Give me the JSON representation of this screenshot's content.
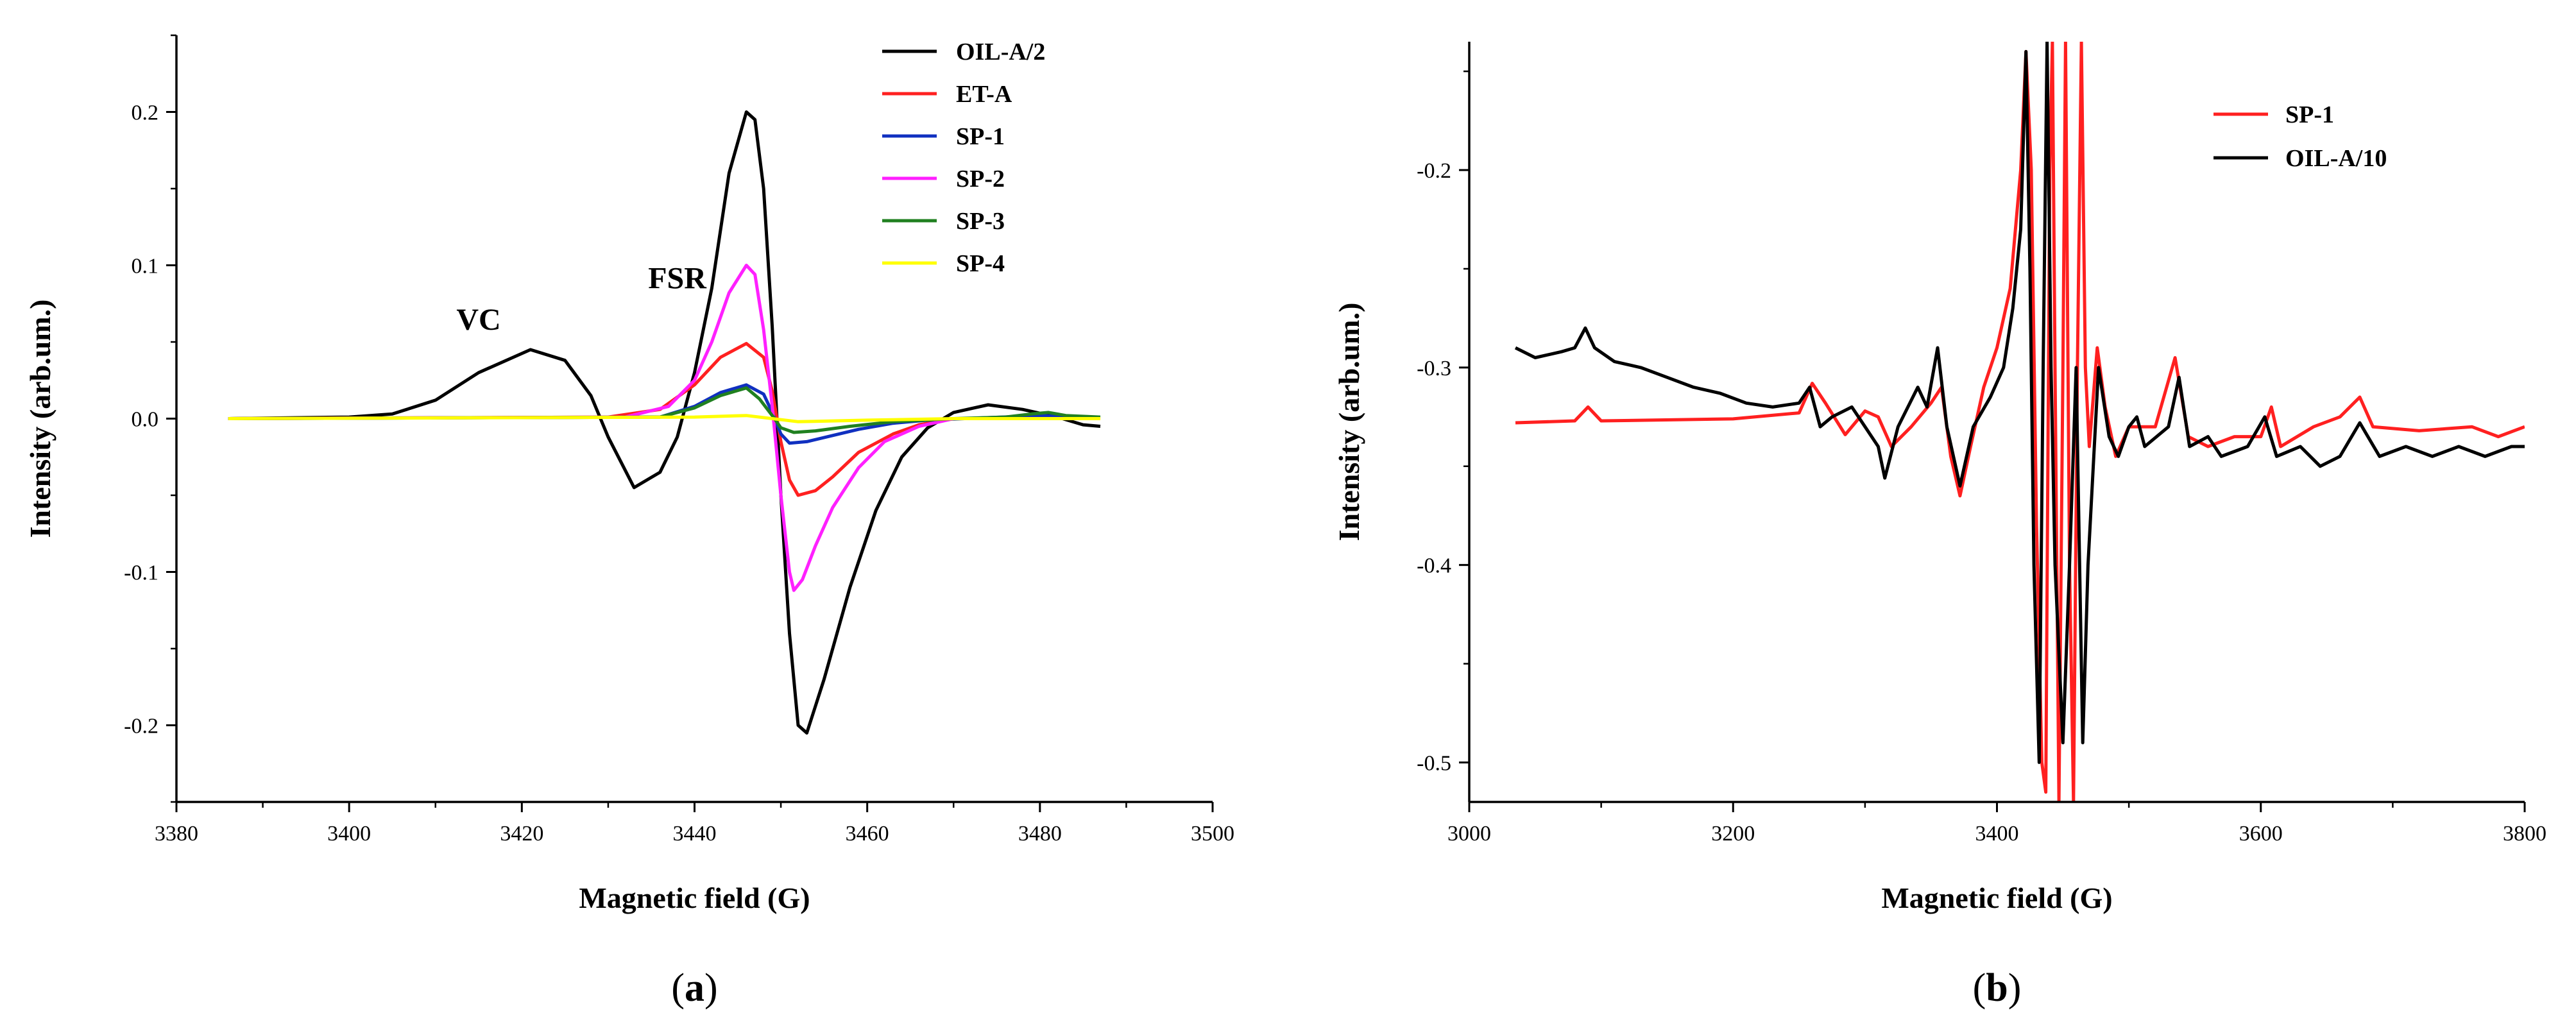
{
  "chart_data": [
    {
      "type": "line",
      "panel_label": "(a)",
      "panel_letter": "a",
      "xlabel": "Magnetic field (G)",
      "ylabel": "Intensity (arb.um.)",
      "xlim": [
        3380,
        3500
      ],
      "ylim": [
        -0.25,
        0.25
      ],
      "xticks": [
        3380,
        3400,
        3420,
        3440,
        3460,
        3480,
        3500
      ],
      "yticks": [
        -0.2,
        -0.1,
        0.0,
        0.1,
        0.2
      ],
      "ytick_labels": [
        "-0.2",
        "-0.1",
        "0.0",
        "0.1",
        "0.2"
      ],
      "legend_position": "top-right",
      "annotations": [
        {
          "text": "VC",
          "x": 3415,
          "y": 0.058
        },
        {
          "text": "FSR",
          "x": 3438,
          "y": 0.085
        }
      ],
      "series": [
        {
          "name": "OIL-A/2",
          "color": "#000000",
          "points": [
            [
              3386,
              0
            ],
            [
              3400,
              0.001
            ],
            [
              3405,
              0.003
            ],
            [
              3410,
              0.012
            ],
            [
              3415,
              0.03
            ],
            [
              3421,
              0.045
            ],
            [
              3425,
              0.038
            ],
            [
              3428,
              0.015
            ],
            [
              3430,
              -0.012
            ],
            [
              3433,
              -0.045
            ],
            [
              3436,
              -0.035
            ],
            [
              3438,
              -0.012
            ],
            [
              3440,
              0.03
            ],
            [
              3442,
              0.085
            ],
            [
              3444,
              0.16
            ],
            [
              3446,
              0.2
            ],
            [
              3447,
              0.195
            ],
            [
              3448,
              0.15
            ],
            [
              3449,
              0.06
            ],
            [
              3450,
              -0.05
            ],
            [
              3451,
              -0.14
            ],
            [
              3452,
              -0.2
            ],
            [
              3453,
              -0.205
            ],
            [
              3455,
              -0.17
            ],
            [
              3458,
              -0.11
            ],
            [
              3461,
              -0.06
            ],
            [
              3464,
              -0.025
            ],
            [
              3467,
              -0.006
            ],
            [
              3470,
              0.004
            ],
            [
              3474,
              0.009
            ],
            [
              3478,
              0.006
            ],
            [
              3482,
              0.001
            ],
            [
              3485,
              -0.004
            ],
            [
              3487,
              -0.005
            ]
          ]
        },
        {
          "name": "ET-A",
          "color": "#ff2020",
          "points": [
            [
              3386,
              0
            ],
            [
              3430,
              0.001
            ],
            [
              3436,
              0.006
            ],
            [
              3440,
              0.022
            ],
            [
              3443,
              0.04
            ],
            [
              3446,
              0.049
            ],
            [
              3448,
              0.04
            ],
            [
              3449,
              0.018
            ],
            [
              3450,
              -0.015
            ],
            [
              3451,
              -0.04
            ],
            [
              3452,
              -0.05
            ],
            [
              3454,
              -0.047
            ],
            [
              3456,
              -0.038
            ],
            [
              3459,
              -0.022
            ],
            [
              3463,
              -0.01
            ],
            [
              3466,
              -0.004
            ],
            [
              3470,
              0
            ],
            [
              3487,
              0
            ]
          ]
        },
        {
          "name": "SP-1",
          "color": "#1030c0",
          "points": [
            [
              3386,
              0
            ],
            [
              3436,
              0.001
            ],
            [
              3440,
              0.008
            ],
            [
              3443,
              0.017
            ],
            [
              3446,
              0.022
            ],
            [
              3448,
              0.016
            ],
            [
              3449,
              0.004
            ],
            [
              3450,
              -0.01
            ],
            [
              3451,
              -0.016
            ],
            [
              3453,
              -0.015
            ],
            [
              3456,
              -0.011
            ],
            [
              3459,
              -0.007
            ],
            [
              3463,
              -0.003
            ],
            [
              3467,
              -0.001
            ],
            [
              3480,
              0.002
            ],
            [
              3487,
              0
            ]
          ]
        },
        {
          "name": "SP-2",
          "color": "#ff20ff",
          "points": [
            [
              3386,
              0
            ],
            [
              3432,
              0.001
            ],
            [
              3437,
              0.008
            ],
            [
              3440,
              0.025
            ],
            [
              3442,
              0.05
            ],
            [
              3444,
              0.082
            ],
            [
              3446,
              0.1
            ],
            [
              3447,
              0.094
            ],
            [
              3448,
              0.058
            ],
            [
              3449,
              0.008
            ],
            [
              3450,
              -0.05
            ],
            [
              3451,
              -0.1
            ],
            [
              3451.5,
              -0.112
            ],
            [
              3452.5,
              -0.105
            ],
            [
              3454,
              -0.083
            ],
            [
              3456,
              -0.058
            ],
            [
              3459,
              -0.032
            ],
            [
              3462,
              -0.015
            ],
            [
              3466,
              -0.005
            ],
            [
              3470,
              0
            ],
            [
              3487,
              0
            ]
          ]
        },
        {
          "name": "SP-3",
          "color": "#208020",
          "points": [
            [
              3386,
              0
            ],
            [
              3436,
              0.001
            ],
            [
              3440,
              0.007
            ],
            [
              3443,
              0.015
            ],
            [
              3446,
              0.02
            ],
            [
              3447.5,
              0.013
            ],
            [
              3449,
              0.002
            ],
            [
              3450,
              -0.006
            ],
            [
              3451.5,
              -0.009
            ],
            [
              3454,
              -0.008
            ],
            [
              3458,
              -0.005
            ],
            [
              3463,
              -0.002
            ],
            [
              3470,
              0
            ],
            [
              3476,
              0.001
            ],
            [
              3479,
              0.003
            ],
            [
              3481,
              0.004
            ],
            [
              3483,
              0.002
            ],
            [
              3487,
              0.001
            ]
          ]
        },
        {
          "name": "SP-4",
          "color": "#ffff00",
          "points": [
            [
              3386,
              0
            ],
            [
              3440,
              0.001
            ],
            [
              3446,
              0.002
            ],
            [
              3452,
              -0.002
            ],
            [
              3460,
              -0.001
            ],
            [
              3470,
              0
            ],
            [
              3487,
              0
            ]
          ]
        }
      ]
    },
    {
      "type": "line",
      "panel_label": "(b)",
      "panel_letter": "b",
      "xlabel": "Magnetic field (G)",
      "ylabel": "Intensity (arb.um.)",
      "xlim": [
        3000,
        3800
      ],
      "ylim": [
        -0.52,
        -0.135
      ],
      "xticks": [
        3000,
        3200,
        3400,
        3600,
        3800
      ],
      "yticks": [
        -0.5,
        -0.4,
        -0.3,
        -0.2
      ],
      "ytick_labels": [
        "-0.5",
        "-0.4",
        "-0.3",
        "-0.2"
      ],
      "legend_position": "top-right",
      "annotations": [],
      "series": [
        {
          "name": "SP-1",
          "color": "#ff2020",
          "points": [
            [
              3035,
              -0.328
            ],
            [
              3080,
              -0.327
            ],
            [
              3090,
              -0.32
            ],
            [
              3100,
              -0.327
            ],
            [
              3200,
              -0.326
            ],
            [
              3250,
              -0.323
            ],
            [
              3260,
              -0.308
            ],
            [
              3270,
              -0.318
            ],
            [
              3285,
              -0.334
            ],
            [
              3300,
              -0.322
            ],
            [
              3310,
              -0.325
            ],
            [
              3320,
              -0.34
            ],
            [
              3335,
              -0.33
            ],
            [
              3350,
              -0.318
            ],
            [
              3358,
              -0.31
            ],
            [
              3365,
              -0.345
            ],
            [
              3372,
              -0.365
            ],
            [
              3380,
              -0.34
            ],
            [
              3390,
              -0.31
            ],
            [
              3400,
              -0.29
            ],
            [
              3410,
              -0.26
            ],
            [
              3418,
              -0.2
            ],
            [
              3422,
              -0.14
            ],
            [
              3426,
              -0.2
            ],
            [
              3430,
              -0.38
            ],
            [
              3434,
              -0.5
            ],
            [
              3437,
              -0.515
            ],
            [
              3440,
              -0.2
            ],
            [
              3442,
              -0.135
            ],
            [
              3444,
              -0.3
            ],
            [
              3447,
              -0.52
            ],
            [
              3450,
              -0.3
            ],
            [
              3452,
              -0.135
            ],
            [
              3455,
              -0.4
            ],
            [
              3458,
              -0.52
            ],
            [
              3461,
              -0.3
            ],
            [
              3464,
              -0.135
            ],
            [
              3467,
              -0.3
            ],
            [
              3470,
              -0.34
            ],
            [
              3476,
              -0.29
            ],
            [
              3482,
              -0.32
            ],
            [
              3490,
              -0.345
            ],
            [
              3500,
              -0.33
            ],
            [
              3520,
              -0.33
            ],
            [
              3535,
              -0.295
            ],
            [
              3545,
              -0.335
            ],
            [
              3560,
              -0.34
            ],
            [
              3580,
              -0.335
            ],
            [
              3600,
              -0.335
            ],
            [
              3608,
              -0.32
            ],
            [
              3615,
              -0.34
            ],
            [
              3640,
              -0.33
            ],
            [
              3660,
              -0.325
            ],
            [
              3675,
              -0.315
            ],
            [
              3685,
              -0.33
            ],
            [
              3720,
              -0.332
            ],
            [
              3760,
              -0.33
            ],
            [
              3780,
              -0.335
            ],
            [
              3800,
              -0.33
            ]
          ]
        },
        {
          "name": "OIL-A/10",
          "color": "#000000",
          "points": [
            [
              3035,
              -0.29
            ],
            [
              3050,
              -0.295
            ],
            [
              3070,
              -0.292
            ],
            [
              3080,
              -0.29
            ],
            [
              3088,
              -0.28
            ],
            [
              3095,
              -0.29
            ],
            [
              3110,
              -0.297
            ],
            [
              3130,
              -0.3
            ],
            [
              3150,
              -0.305
            ],
            [
              3170,
              -0.31
            ],
            [
              3190,
              -0.313
            ],
            [
              3210,
              -0.318
            ],
            [
              3230,
              -0.32
            ],
            [
              3250,
              -0.318
            ],
            [
              3258,
              -0.31
            ],
            [
              3266,
              -0.33
            ],
            [
              3275,
              -0.325
            ],
            [
              3290,
              -0.32
            ],
            [
              3300,
              -0.33
            ],
            [
              3310,
              -0.34
            ],
            [
              3315,
              -0.356
            ],
            [
              3325,
              -0.33
            ],
            [
              3340,
              -0.31
            ],
            [
              3347,
              -0.32
            ],
            [
              3355,
              -0.29
            ],
            [
              3362,
              -0.33
            ],
            [
              3372,
              -0.36
            ],
            [
              3382,
              -0.33
            ],
            [
              3395,
              -0.315
            ],
            [
              3405,
              -0.3
            ],
            [
              3412,
              -0.27
            ],
            [
              3418,
              -0.23
            ],
            [
              3422,
              -0.14
            ],
            [
              3425,
              -0.25
            ],
            [
              3428,
              -0.4
            ],
            [
              3432,
              -0.5
            ],
            [
              3435,
              -0.3
            ],
            [
              3438,
              -0.135
            ],
            [
              3441,
              -0.3
            ],
            [
              3444,
              -0.4
            ],
            [
              3450,
              -0.49
            ],
            [
              3455,
              -0.4
            ],
            [
              3460,
              -0.3
            ],
            [
              3465,
              -0.49
            ],
            [
              3469,
              -0.4
            ],
            [
              3473,
              -0.35
            ],
            [
              3477,
              -0.3
            ],
            [
              3485,
              -0.335
            ],
            [
              3492,
              -0.345
            ],
            [
              3500,
              -0.33
            ],
            [
              3506,
              -0.325
            ],
            [
              3512,
              -0.34
            ],
            [
              3530,
              -0.33
            ],
            [
              3538,
              -0.305
            ],
            [
              3546,
              -0.34
            ],
            [
              3560,
              -0.335
            ],
            [
              3570,
              -0.345
            ],
            [
              3590,
              -0.34
            ],
            [
              3603,
              -0.325
            ],
            [
              3612,
              -0.345
            ],
            [
              3630,
              -0.34
            ],
            [
              3645,
              -0.35
            ],
            [
              3660,
              -0.345
            ],
            [
              3675,
              -0.328
            ],
            [
              3690,
              -0.345
            ],
            [
              3710,
              -0.34
            ],
            [
              3730,
              -0.345
            ],
            [
              3750,
              -0.34
            ],
            [
              3770,
              -0.345
            ],
            [
              3790,
              -0.34
            ],
            [
              3800,
              -0.34
            ]
          ]
        }
      ]
    }
  ]
}
